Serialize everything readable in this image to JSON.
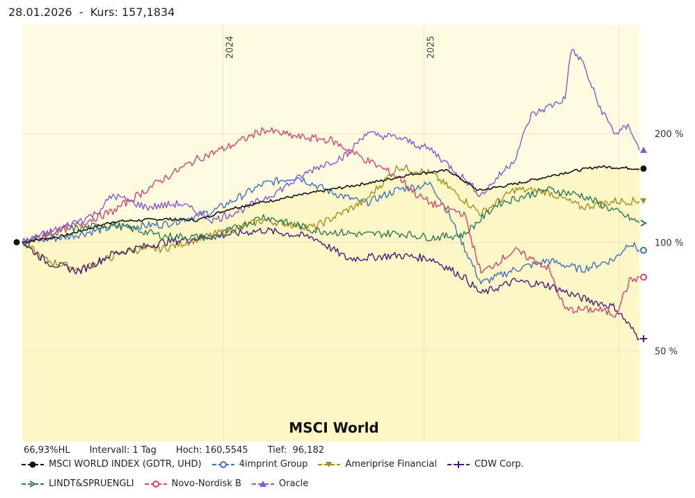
{
  "header": {
    "date": "28.01.2026",
    "separator": "-",
    "kurs_label": "Kurs:",
    "kurs_value": "157,1834"
  },
  "stats": {
    "hl": "66,93%HL",
    "interval": "Intervall: 1 Tag",
    "hoch": "Hoch: 160,5545",
    "tief": "Tief:  96,182"
  },
  "colors": {
    "background": "#fffbe0",
    "area_fill": "#fdf7c8"
  },
  "chart_data": {
    "type": "line",
    "title": "MSCI World",
    "y_scale": "log",
    "y_ticks": [
      {
        "value": 200,
        "label": "200 %"
      },
      {
        "value": 100,
        "label": "100 %"
      },
      {
        "value": 50,
        "label": "50 %"
      }
    ],
    "year_labels": [
      {
        "x": "2024-01-01",
        "label": "2024"
      },
      {
        "x": "2025-01-01",
        "label": "2025"
      }
    ],
    "x_range": [
      "2023-01-01",
      "2026-01-28"
    ],
    "y_range": [
      28,
      400
    ],
    "series": [
      {
        "name": "MSCI WORLD INDEX (GDTR, UHD)",
        "color": "#111111",
        "marker": "dot",
        "points": [
          [
            "2023-01-01",
            100
          ],
          [
            "2023-03-15",
            104
          ],
          [
            "2023-06-15",
            114
          ],
          [
            "2023-09-15",
            116
          ],
          [
            "2023-11-15",
            115
          ],
          [
            "2024-01-15",
            124
          ],
          [
            "2024-04-15",
            132
          ],
          [
            "2024-07-15",
            140
          ],
          [
            "2024-10-15",
            148
          ],
          [
            "2024-12-15",
            155
          ],
          [
            "2025-02-15",
            158
          ],
          [
            "2025-04-10",
            139
          ],
          [
            "2025-06-15",
            145
          ],
          [
            "2025-09-15",
            156
          ],
          [
            "2025-11-15",
            162
          ],
          [
            "2026-01-28",
            160
          ]
        ]
      },
      {
        "name": "4imprint Group",
        "color": "#3d6fc3",
        "marker": "circle-line",
        "points": [
          [
            "2023-01-01",
            100
          ],
          [
            "2023-03-15",
            103
          ],
          [
            "2023-06-15",
            110
          ],
          [
            "2023-09-15",
            112
          ],
          [
            "2023-12-15",
            122
          ],
          [
            "2024-03-15",
            145
          ],
          [
            "2024-05-15",
            152
          ],
          [
            "2024-07-15",
            138
          ],
          [
            "2024-09-15",
            128
          ],
          [
            "2024-11-15",
            140
          ],
          [
            "2025-01-15",
            145
          ],
          [
            "2025-02-15",
            120
          ],
          [
            "2025-04-15",
            77
          ],
          [
            "2025-06-15",
            84
          ],
          [
            "2025-08-15",
            89
          ],
          [
            "2025-10-15",
            84
          ],
          [
            "2025-12-15",
            90
          ],
          [
            "2026-01-10",
            100
          ],
          [
            "2026-01-28",
            95
          ]
        ]
      },
      {
        "name": "Ameriprise Financial",
        "color": "#a48b1f",
        "marker": "arrow-left",
        "points": [
          [
            "2023-01-01",
            100
          ],
          [
            "2023-02-15",
            89
          ],
          [
            "2023-04-15",
            84
          ],
          [
            "2023-07-15",
            95
          ],
          [
            "2023-09-15",
            96
          ],
          [
            "2023-12-15",
            105
          ],
          [
            "2024-03-15",
            115
          ],
          [
            "2024-06-15",
            110
          ],
          [
            "2024-09-15",
            130
          ],
          [
            "2024-11-15",
            162
          ],
          [
            "2025-01-15",
            155
          ],
          [
            "2025-04-15",
            120
          ],
          [
            "2025-06-15",
            140
          ],
          [
            "2025-08-15",
            138
          ],
          [
            "2025-10-15",
            125
          ],
          [
            "2025-12-15",
            130
          ],
          [
            "2026-01-28",
            130
          ]
        ]
      },
      {
        "name": "CDW Corp.",
        "color": "#4a1a7a",
        "marker": "plus",
        "points": [
          [
            "2023-01-01",
            100
          ],
          [
            "2023-02-15",
            88
          ],
          [
            "2023-04-15",
            83
          ],
          [
            "2023-06-15",
            93
          ],
          [
            "2023-09-15",
            100
          ],
          [
            "2023-12-15",
            104
          ],
          [
            "2024-03-15",
            108
          ],
          [
            "2024-06-15",
            103
          ],
          [
            "2024-08-15",
            90
          ],
          [
            "2024-11-15",
            92
          ],
          [
            "2025-01-15",
            90
          ],
          [
            "2025-03-15",
            80
          ],
          [
            "2025-04-15",
            72
          ],
          [
            "2025-06-15",
            78
          ],
          [
            "2025-08-15",
            76
          ],
          [
            "2025-10-15",
            70
          ],
          [
            "2025-12-15",
            66
          ],
          [
            "2026-01-28",
            54
          ]
        ]
      },
      {
        "name": "LINDT&SPRUENGLI",
        "color": "#2e7a4e",
        "marker": "arrow-right",
        "points": [
          [
            "2023-01-01",
            100
          ],
          [
            "2023-03-15",
            108
          ],
          [
            "2023-06-15",
            112
          ],
          [
            "2023-09-15",
            104
          ],
          [
            "2023-12-15",
            103
          ],
          [
            "2024-03-15",
            118
          ],
          [
            "2024-06-15",
            108
          ],
          [
            "2024-09-15",
            105
          ],
          [
            "2024-11-15",
            106
          ],
          [
            "2025-01-15",
            103
          ],
          [
            "2025-03-15",
            105
          ],
          [
            "2025-05-15",
            128
          ],
          [
            "2025-08-15",
            140
          ],
          [
            "2025-10-15",
            135
          ],
          [
            "2025-12-15",
            122
          ],
          [
            "2026-01-28",
            113
          ]
        ]
      },
      {
        "name": "Novo-Nordisk B",
        "color": "#d9406e",
        "marker": "circle",
        "points": [
          [
            "2023-01-01",
            100
          ],
          [
            "2023-03-15",
            108
          ],
          [
            "2023-06-15",
            122
          ],
          [
            "2023-09-15",
            150
          ],
          [
            "2023-11-15",
            170
          ],
          [
            "2024-01-15",
            185
          ],
          [
            "2024-03-15",
            205
          ],
          [
            "2024-05-15",
            196
          ],
          [
            "2024-07-15",
            192
          ],
          [
            "2024-09-15",
            170
          ],
          [
            "2024-11-15",
            152
          ],
          [
            "2024-12-20",
            135
          ],
          [
            "2025-01-15",
            128
          ],
          [
            "2025-03-15",
            120
          ],
          [
            "2025-04-15",
            82
          ],
          [
            "2025-06-15",
            95
          ],
          [
            "2025-08-15",
            85
          ],
          [
            "2025-09-15",
            65
          ],
          [
            "2025-11-15",
            65
          ],
          [
            "2025-12-15",
            63
          ],
          [
            "2026-01-10",
            78
          ],
          [
            "2026-01-28",
            80
          ]
        ]
      },
      {
        "name": "Oracle",
        "color": "#8855dd",
        "marker": "triangle",
        "points": [
          [
            "2023-01-01",
            100
          ],
          [
            "2023-03-15",
            110
          ],
          [
            "2023-05-15",
            120
          ],
          [
            "2023-06-15",
            135
          ],
          [
            "2023-08-15",
            125
          ],
          [
            "2023-10-15",
            128
          ],
          [
            "2023-12-15",
            115
          ],
          [
            "2024-02-15",
            125
          ],
          [
            "2024-04-15",
            140
          ],
          [
            "2024-06-15",
            160
          ],
          [
            "2024-08-15",
            175
          ],
          [
            "2024-09-15",
            200
          ],
          [
            "2024-11-15",
            195
          ],
          [
            "2025-01-15",
            180
          ],
          [
            "2025-03-15",
            150
          ],
          [
            "2025-04-15",
            135
          ],
          [
            "2025-06-15",
            170
          ],
          [
            "2025-07-15",
            225
          ],
          [
            "2025-09-15",
            250
          ],
          [
            "2025-09-25",
            340
          ],
          [
            "2025-10-15",
            320
          ],
          [
            "2025-11-15",
            240
          ],
          [
            "2025-12-15",
            200
          ],
          [
            "2026-01-10",
            210
          ],
          [
            "2026-01-28",
            180
          ]
        ]
      }
    ]
  }
}
